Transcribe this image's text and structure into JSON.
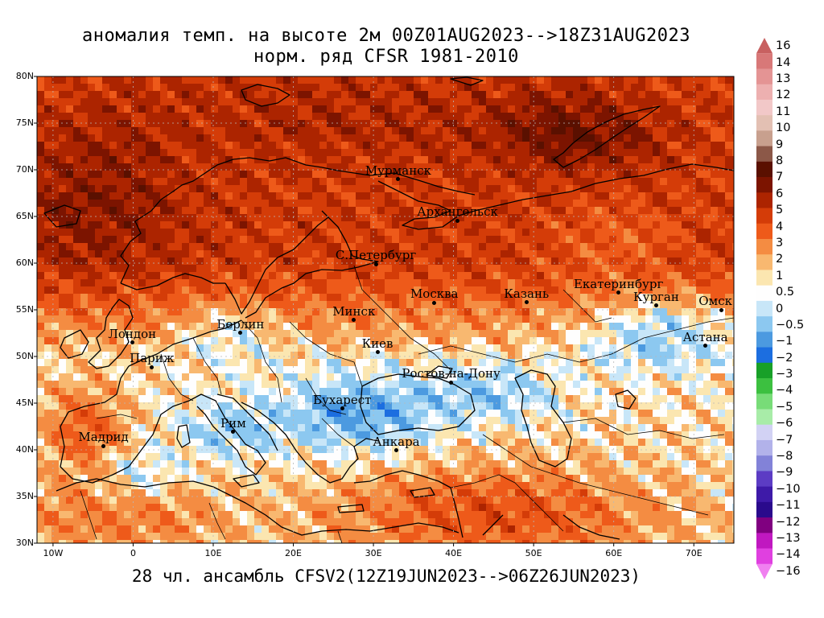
{
  "title": {
    "line1": "аномалия темп. на высоте 2м 00Z01AUG2023-->18Z31AUG2023",
    "line2": "норм. ряд CFSR 1981-2010"
  },
  "footer": "28 чл. ансамбль CFSV2(12Z19JUN2023-->06Z26JUN2023)",
  "map": {
    "lat_range": [
      30,
      80
    ],
    "lon_range": [
      -12,
      75
    ],
    "lat_ticks": [
      "80N",
      "75N",
      "70N",
      "65N",
      "60N",
      "55N",
      "50N",
      "45N",
      "40N",
      "35N",
      "30N"
    ],
    "lon_ticks": [
      "10W",
      "0",
      "10E",
      "20E",
      "30E",
      "40E",
      "50E",
      "60E",
      "70E"
    ],
    "cities": [
      {
        "name": "Мурманск",
        "lat": 68.97,
        "lon": 33.1
      },
      {
        "name": "Архангельск",
        "lat": 64.55,
        "lon": 40.5
      },
      {
        "name": "С.Петербург",
        "lat": 59.9,
        "lon": 30.3
      },
      {
        "name": "Москва",
        "lat": 55.75,
        "lon": 37.6
      },
      {
        "name": "Казань",
        "lat": 55.8,
        "lon": 49.1
      },
      {
        "name": "Екатеринбург",
        "lat": 56.85,
        "lon": 60.6
      },
      {
        "name": "Курган",
        "lat": 55.45,
        "lon": 65.3
      },
      {
        "name": "Омск",
        "lat": 54.98,
        "lon": 73.4
      },
      {
        "name": "Астана",
        "lat": 51.16,
        "lon": 71.45
      },
      {
        "name": "Минск",
        "lat": 53.9,
        "lon": 27.56
      },
      {
        "name": "Киев",
        "lat": 50.45,
        "lon": 30.5
      },
      {
        "name": "Берлин",
        "lat": 52.52,
        "lon": 13.4
      },
      {
        "name": "Лондон",
        "lat": 51.5,
        "lon": -0.12
      },
      {
        "name": "Париж",
        "lat": 48.85,
        "lon": 2.35
      },
      {
        "name": "Ростов-на-Дону",
        "lat": 47.23,
        "lon": 39.7
      },
      {
        "name": "Бухарест",
        "lat": 44.43,
        "lon": 26.1
      },
      {
        "name": "Рим",
        "lat": 41.9,
        "lon": 12.5
      },
      {
        "name": "Мадрид",
        "lat": 40.4,
        "lon": -3.7
      },
      {
        "name": "Анкара",
        "lat": 39.93,
        "lon": 32.86
      }
    ]
  },
  "legend": {
    "labels": [
      "16",
      "14",
      "13",
      "12",
      "11",
      "10",
      "9",
      "8",
      "7",
      "6",
      "5",
      "4",
      "3",
      "2",
      "1",
      "0.5",
      "0",
      "−0.5",
      "−1",
      "−2",
      "−3",
      "−4",
      "−5",
      "−6",
      "−7",
      "−8",
      "−9",
      "−10",
      "−11",
      "−12",
      "−13",
      "−14",
      "−16"
    ],
    "colors": [
      "#c86060",
      "#d87878",
      "#e49494",
      "#edb0b0",
      "#f2c8c8",
      "#e3c0b3",
      "#c8a08e",
      "#8c5848",
      "#5a1000",
      "#7c1400",
      "#ac2400",
      "#d43c08",
      "#ee5a1a",
      "#f48c42",
      "#f8b870",
      "#fbe6b0",
      "#fefefe",
      "#c8e6f8",
      "#8cc8f0",
      "#4c9ae0",
      "#1c6ee0",
      "#18a028",
      "#3cc040",
      "#78dc78",
      "#a8eca8",
      "#d2d2f4",
      "#b2b2ea",
      "#8282d8",
      "#5c3cc4",
      "#3e1aa8",
      "#2a0a8c",
      "#800080",
      "#c018c0",
      "#e040e0",
      "#f080f0"
    ]
  },
  "colors": {
    "land_line": "#000000",
    "background": "#ffffff"
  }
}
